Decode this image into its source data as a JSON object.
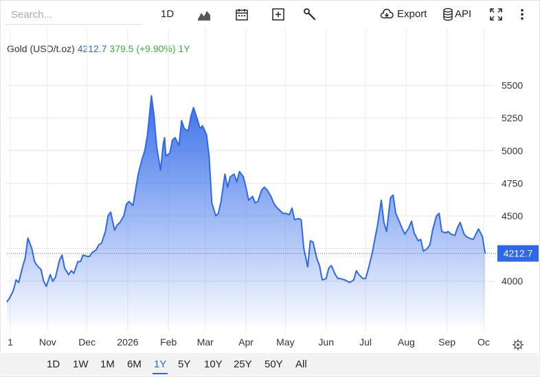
{
  "toolbar": {
    "search_placeholder": "Search...",
    "interval_label": "1D",
    "export_label": "Export",
    "api_label": "API"
  },
  "legend": {
    "name": "Gold (USD/t.oz)",
    "value": "4212.7",
    "change": "379.5 (+9.90%)",
    "period": "1Y"
  },
  "range_buttons": [
    "1D",
    "1W",
    "1M",
    "6M",
    "1Y",
    "5Y",
    "10Y",
    "25Y",
    "50Y",
    "All"
  ],
  "active_range": "1Y",
  "colors": {
    "line": "#2e67e8",
    "fill_top": "#2e67e8",
    "change_positive": "#3cae3c"
  },
  "chart_data": {
    "type": "area",
    "title": "",
    "xlabel": "",
    "ylabel": "",
    "ylim": [
      3770,
      5650
    ],
    "y_ticks": [
      4000,
      4250,
      4500,
      4750,
      5000,
      5250,
      5500
    ],
    "x_tick_labels": [
      "1",
      "Nov",
      "Dec",
      "2026",
      "Feb",
      "Mar",
      "Apr",
      "May",
      "Jun",
      "Jul",
      "Aug",
      "Sep",
      "Oc"
    ],
    "last_value_label": "4212.7",
    "reference_value": 4212.7,
    "grid": true,
    "series": [
      {
        "x": [
          "2025-10-01",
          "2025-10-03",
          "2025-10-06",
          "2025-10-08",
          "2025-10-10",
          "2025-10-13",
          "2025-10-15",
          "2025-10-17",
          "2025-10-20",
          "2025-10-22",
          "2025-10-24",
          "2025-10-27",
          "2025-10-29",
          "2025-10-31",
          "2025-11-03",
          "2025-11-05",
          "2025-11-07",
          "2025-11-10",
          "2025-11-12",
          "2025-11-14",
          "2025-11-17",
          "2025-11-19",
          "2025-11-21",
          "2025-11-24",
          "2025-11-26",
          "2025-11-28",
          "2025-12-01",
          "2025-12-03",
          "2025-12-05",
          "2025-12-08",
          "2025-12-10",
          "2025-12-12",
          "2025-12-15",
          "2025-12-17",
          "2025-12-19",
          "2025-12-22",
          "2025-12-24",
          "2025-12-26",
          "2025-12-29",
          "2025-12-31",
          "2026-01-02",
          "2026-01-05",
          "2026-01-07",
          "2026-01-09",
          "2026-01-12",
          "2026-01-14",
          "2026-01-16",
          "2026-01-19",
          "2026-01-21",
          "2026-01-23",
          "2026-01-26",
          "2026-01-28",
          "2026-01-29",
          "2026-01-30",
          "2026-02-02",
          "2026-02-04",
          "2026-02-06",
          "2026-02-09",
          "2026-02-11",
          "2026-02-13",
          "2026-02-16",
          "2026-02-18",
          "2026-02-20",
          "2026-02-23",
          "2026-02-25",
          "2026-02-27",
          "2026-03-02",
          "2026-03-04",
          "2026-03-06",
          "2026-03-09",
          "2026-03-11",
          "2026-03-13",
          "2026-03-16",
          "2026-03-18",
          "2026-03-20",
          "2026-03-23",
          "2026-03-25",
          "2026-03-27",
          "2026-03-30",
          "2026-04-01",
          "2026-04-03",
          "2026-04-06",
          "2026-04-08",
          "2026-04-10",
          "2026-04-13",
          "2026-04-15",
          "2026-04-17",
          "2026-04-20",
          "2026-04-22",
          "2026-04-24",
          "2026-04-27",
          "2026-04-29",
          "2026-05-01",
          "2026-05-04",
          "2026-05-06",
          "2026-05-08",
          "2026-05-11",
          "2026-05-13",
          "2026-05-15",
          "2026-05-18",
          "2026-05-20",
          "2026-05-22",
          "2026-05-25",
          "2026-05-27",
          "2026-05-29",
          "2026-06-01",
          "2026-06-03",
          "2026-06-05",
          "2026-06-08",
          "2026-06-10",
          "2026-06-12",
          "2026-06-15",
          "2026-06-17",
          "2026-06-19",
          "2026-06-22",
          "2026-06-24",
          "2026-06-26",
          "2026-06-29",
          "2026-07-01",
          "2026-07-03",
          "2026-07-06",
          "2026-07-08",
          "2026-07-10",
          "2026-07-13",
          "2026-07-15",
          "2026-07-17",
          "2026-07-20",
          "2026-07-22",
          "2026-07-24",
          "2026-07-27",
          "2026-07-29",
          "2026-07-31",
          "2026-08-03",
          "2026-08-05",
          "2026-08-07",
          "2026-08-10",
          "2026-08-12",
          "2026-08-14",
          "2026-08-17",
          "2026-08-19",
          "2026-08-21",
          "2026-08-24",
          "2026-08-26",
          "2026-08-28",
          "2026-08-31",
          "2026-09-02",
          "2026-09-04",
          "2026-09-07",
          "2026-09-09",
          "2026-09-11",
          "2026-09-14",
          "2026-09-16",
          "2026-09-18",
          "2026-09-21",
          "2026-09-23",
          "2026-09-25",
          "2026-09-28",
          "2026-09-30"
        ],
        "values": [
          3840,
          3870,
          3930,
          4010,
          3990,
          4110,
          4180,
          4330,
          4250,
          4150,
          4120,
          4090,
          4000,
          3960,
          4050,
          4000,
          4030,
          4160,
          4200,
          4100,
          4050,
          4080,
          4060,
          4150,
          4150,
          4200,
          4190,
          4190,
          4220,
          4240,
          4280,
          4290,
          4380,
          4500,
          4530,
          4390,
          4430,
          4450,
          4500,
          4590,
          4610,
          4580,
          4700,
          4820,
          4940,
          5000,
          5120,
          5420,
          5270,
          5030,
          4850,
          5050,
          5100,
          4960,
          4980,
          5080,
          5100,
          5040,
          5230,
          5170,
          5150,
          5260,
          5330,
          5240,
          5170,
          5190,
          5120,
          4950,
          4600,
          4500,
          4520,
          4610,
          4820,
          4720,
          4800,
          4820,
          4760,
          4840,
          4800,
          4720,
          4620,
          4650,
          4600,
          4610,
          4700,
          4720,
          4700,
          4650,
          4600,
          4570,
          4540,
          4520,
          4520,
          4510,
          4560,
          4470,
          4480,
          4470,
          4250,
          4110,
          4310,
          4300,
          4170,
          4120,
          4010,
          4020,
          4100,
          4120,
          4050,
          4020,
          4020,
          4010,
          4000,
          3990,
          4010,
          4080,
          4050,
          4020,
          4020,
          4090,
          4210,
          4320,
          4420,
          4620,
          4450,
          4380,
          4640,
          4660,
          4520,
          4450,
          4400,
          4360,
          4410,
          4460,
          4370,
          4310,
          4320,
          4230,
          4250,
          4280,
          4390,
          4500,
          4520,
          4380,
          4370,
          4380,
          4360,
          4350,
          4410,
          4450,
          4360,
          4340,
          4330,
          4320,
          4360,
          4400,
          4340,
          4212.7
        ]
      }
    ]
  }
}
